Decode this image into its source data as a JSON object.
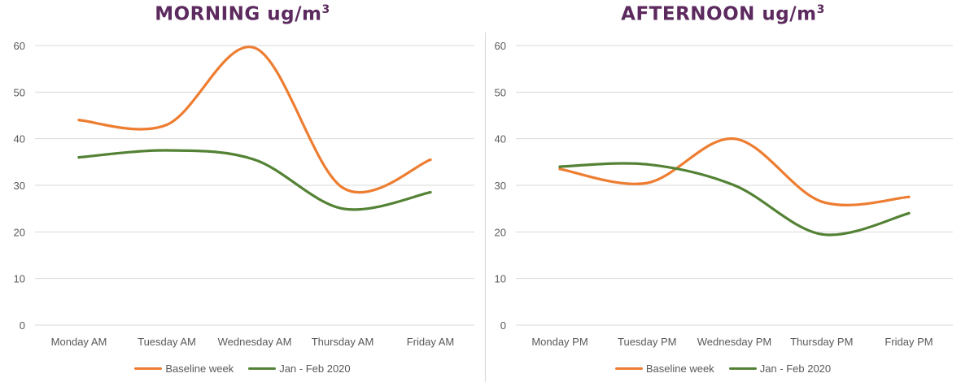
{
  "chart_data": [
    {
      "type": "line",
      "title": "MORNING  ug/m",
      "title_superscript": "3",
      "categories": [
        "Monday AM",
        "Tuesday AM",
        "Wednesday AM",
        "Thursday AM",
        "Friday AM"
      ],
      "ylim": [
        0,
        60
      ],
      "yticks": [
        "0",
        "10",
        "20",
        "30",
        "40",
        "50",
        "60"
      ],
      "grid": true,
      "legend": "bottom",
      "series": [
        {
          "name": "Baseline week",
          "color": "#ed7d31",
          "values": [
            44,
            43,
            59.5,
            29.5,
            35.5
          ]
        },
        {
          "name": "Jan - Feb 2020",
          "color": "#548235",
          "values": [
            36,
            37.5,
            35.5,
            25,
            28.5
          ]
        }
      ]
    },
    {
      "type": "line",
      "title": "AFTERNOON  ug/m",
      "title_superscript": "3",
      "categories": [
        "Monday PM",
        "Tuesday PM",
        "Wednesday PM",
        "Thursday PM",
        "Friday PM"
      ],
      "ylim": [
        0,
        60
      ],
      "yticks": [
        "0",
        "10",
        "20",
        "30",
        "40",
        "50",
        "60"
      ],
      "grid": true,
      "legend": "bottom",
      "series": [
        {
          "name": "Baseline week",
          "color": "#ed7d31",
          "values": [
            33.5,
            30.5,
            40,
            26.5,
            27.5
          ]
        },
        {
          "name": "Jan - Feb 2020",
          "color": "#548235",
          "values": [
            34,
            34.5,
            30,
            19.5,
            24
          ]
        }
      ]
    }
  ]
}
